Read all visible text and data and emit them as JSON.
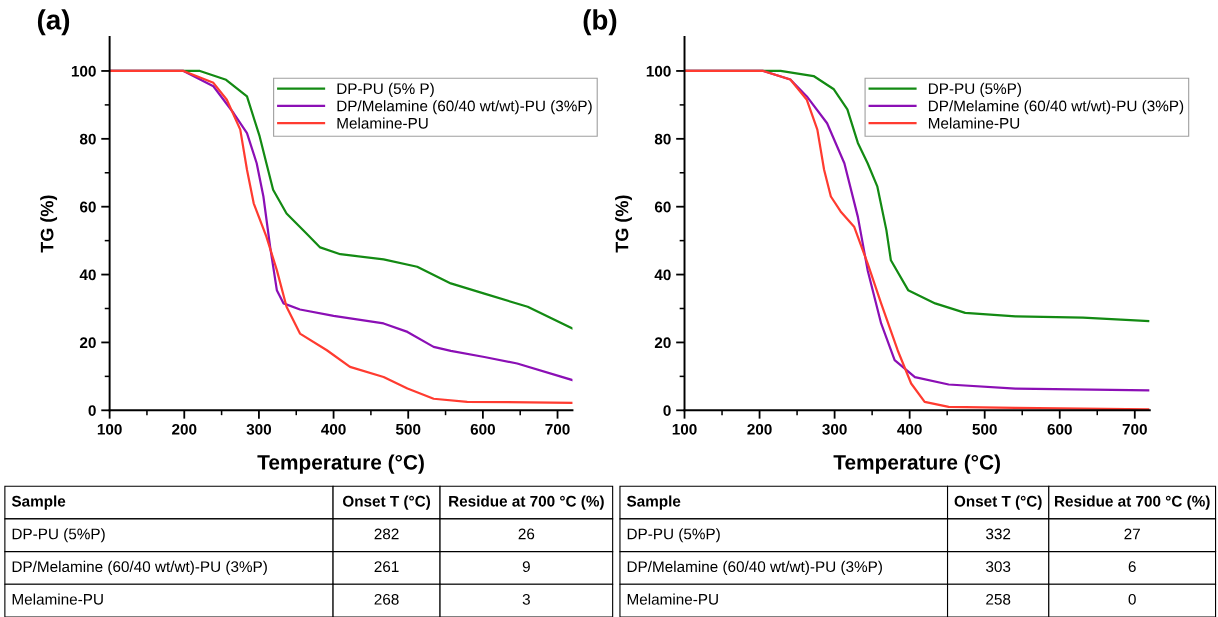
{
  "chart_data": [
    {
      "type": "line",
      "title": "(a)",
      "xlabel": "Temperature (°C)",
      "ylabel": "TG (%)",
      "xlim": [
        100,
        720
      ],
      "ylim": [
        0,
        110
      ],
      "xticks": [
        100,
        200,
        300,
        400,
        500,
        600,
        700
      ],
      "yticks": [
        0,
        20,
        40,
        60,
        80,
        100
      ],
      "legend": "top right",
      "grid": false,
      "series": [
        {
          "name": "DP-PU (5% P)",
          "color": "#138a13",
          "x": [
            100,
            221,
            256,
            284,
            301,
            310,
            319,
            337,
            364,
            382,
            409,
            467,
            512,
            557,
            602,
            660,
            720
          ],
          "values": [
            100,
            100,
            97.4,
            92.5,
            80.7,
            72.8,
            65,
            58,
            52,
            48,
            46,
            44.5,
            42.3,
            37.4,
            34.4,
            30.5,
            24.1
          ]
        },
        {
          "name": "DP/Melamine (60/40 wt/wt)-PU (3%P)",
          "color": "#8b0fb5",
          "x": [
            100,
            199,
            239,
            266,
            284,
            297,
            306,
            315,
            324,
            333,
            355,
            400,
            467,
            499,
            534,
            557,
            602,
            646,
            720
          ],
          "values": [
            100,
            100,
            95.5,
            87.6,
            81.7,
            72.8,
            63,
            48.2,
            35.4,
            31.5,
            29.7,
            27.8,
            25.6,
            23.1,
            18.7,
            17.5,
            15.7,
            13.8,
            8.9
          ]
        },
        {
          "name": "Melamine-PU",
          "color": "#ff3b30",
          "x": [
            100,
            199,
            239,
            257,
            275,
            284,
            293,
            310,
            324,
            337,
            355,
            391,
            422,
            467,
            499,
            534,
            579,
            720
          ],
          "values": [
            100,
            100,
            96.5,
            91.5,
            82.7,
            70.9,
            61,
            51.2,
            41.3,
            30.5,
            22.6,
            17.7,
            12.8,
            9.8,
            6.4,
            3.4,
            2.5,
            2.2
          ]
        }
      ],
      "annotations": [
        "Sample",
        "Onset T (°C)",
        "Residue at 700 °C (%)",
        "DP-PU (5%P)",
        "282",
        "26",
        "DP/Melamine (60/40 wt/wt)-PU (3%P)",
        "261",
        "9",
        "Melamine-PU",
        "268",
        "3"
      ]
    },
    {
      "type": "line",
      "title": "(b)",
      "xlabel": "Temperature (°C)",
      "ylabel": "TG (%)",
      "xlim": [
        100,
        720
      ],
      "ylim": [
        0,
        110
      ],
      "xticks": [
        100,
        200,
        300,
        400,
        500,
        600,
        700
      ],
      "yticks": [
        0,
        20,
        40,
        60,
        80,
        100
      ],
      "legend": "top right",
      "grid": false,
      "series": [
        {
          "name": "DP-PU (5%P)",
          "color": "#138a13",
          "x": [
            100,
            228,
            272,
            299,
            317,
            331,
            344,
            357,
            369,
            375,
            398,
            434,
            474,
            541,
            631,
            718
          ],
          "values": [
            100,
            100,
            98.5,
            94.6,
            88.7,
            78.8,
            72.8,
            65.9,
            53.1,
            44.2,
            35.4,
            31.5,
            28.7,
            27.7,
            27.3,
            26.3
          ]
        },
        {
          "name": "DP/Melamine (60/40 wt/wt)-PU (3%P)",
          "color": "#8b0fb5",
          "x": [
            100,
            205,
            241,
            263,
            290,
            313,
            331,
            344,
            362,
            380,
            407,
            452,
            541,
            718
          ],
          "values": [
            100,
            100,
            97.5,
            92.5,
            84.6,
            72.8,
            57,
            41.3,
            25.6,
            14.8,
            9.8,
            7.6,
            6.4,
            5.9
          ]
        },
        {
          "name": "Melamine-PU",
          "color": "#ff3b30",
          "x": [
            100,
            205,
            241,
            263,
            277,
            286,
            295,
            308,
            326,
            344,
            362,
            384,
            402,
            420,
            452,
            541,
            718
          ],
          "values": [
            100,
            100,
            97.5,
            91.5,
            82.7,
            70.9,
            63,
            58.6,
            54.1,
            43.3,
            31.5,
            17.7,
            7.9,
            2.5,
            1,
            0.7,
            0.3
          ]
        }
      ],
      "annotations": [
        "Sample",
        "Onset T (°C)",
        "Residue at 700 °C (%)",
        "DP-PU (5%P)",
        "332",
        "27",
        "DP/Melamine (60/40 wt/wt)-PU (3%P)",
        "303",
        "6",
        "Melamine-PU",
        "258",
        "0"
      ]
    }
  ]
}
